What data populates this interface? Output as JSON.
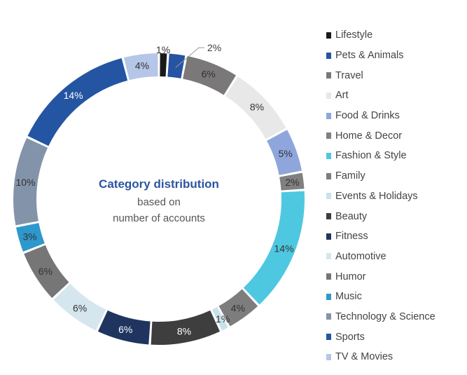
{
  "chart_data": {
    "type": "pie",
    "donut": true,
    "title": "Category distribution",
    "subtitle_lines": [
      "based on",
      "number of accounts"
    ],
    "legend_position": "right",
    "categories": [
      "Lifestyle",
      "Pets & Animals",
      "Travel",
      "Art",
      "Food & Drinks",
      "Home & Decor",
      "Fashion & Style",
      "Family",
      "Events & Holidays",
      "Beauty",
      "Fitness",
      "Automotive",
      "Humor",
      "Music",
      "Technology & Science",
      "Sports",
      "TV & Movies"
    ],
    "values": [
      1,
      2,
      6,
      8,
      5,
      2,
      14,
      4,
      1,
      8,
      6,
      6,
      6,
      3,
      10,
      14,
      4
    ],
    "labels": [
      "1%",
      "2%",
      "6%",
      "8%",
      "5%",
      "2%",
      "14%",
      "4%",
      "1%",
      "8%",
      "6%",
      "6%",
      "6%",
      "3%",
      "10%",
      "14%",
      "4%"
    ],
    "colors": [
      "#1a1a1a",
      "#2653a4",
      "#7a7878",
      "#e8e8e8",
      "#8ea6dc",
      "#808080",
      "#4ec8e0",
      "#7d7d7d",
      "#c8e2ec",
      "#3e3e3e",
      "#1f355f",
      "#d6e6ee",
      "#767676",
      "#2e98cc",
      "#8393aa",
      "#2455a3",
      "#b5c6e8"
    ]
  }
}
